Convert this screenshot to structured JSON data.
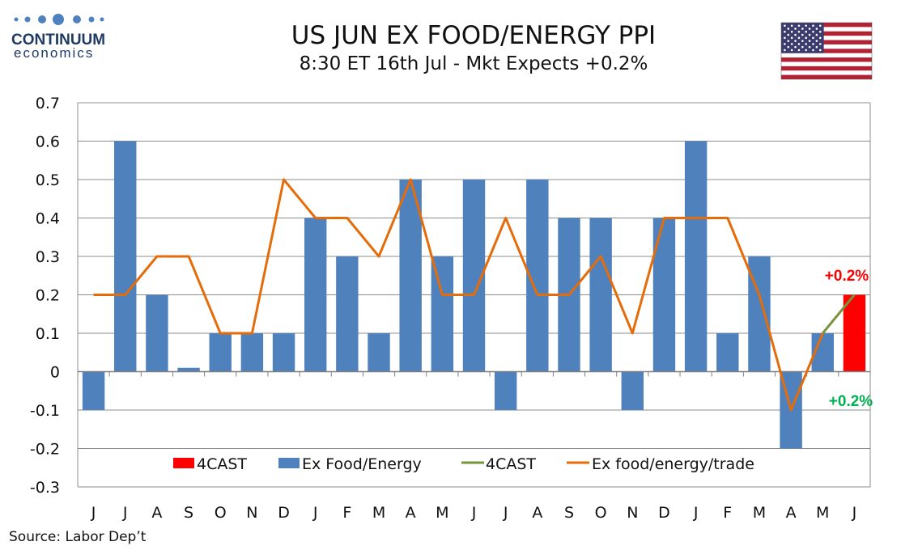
{
  "logo": {
    "name": "CONTINUUM",
    "sub": "economics"
  },
  "source": "Source: Labor Dep’t",
  "chart_data": {
    "type": "bar",
    "title": "US JUN EX FOOD/ENERGY PPI",
    "subtitle": "8:30 ET 16th Jul - Mkt Expects +0.2%",
    "categories": [
      "J",
      "J",
      "A",
      "S",
      "O",
      "N",
      "D",
      "J",
      "F",
      "M",
      "A",
      "M",
      "J",
      "J",
      "A",
      "S",
      "O",
      "N",
      "D",
      "J",
      "F",
      "M",
      "A",
      "M",
      "J"
    ],
    "ylim": [
      -0.3,
      0.7
    ],
    "yticks": [
      "0.7",
      "0.6",
      "0.5",
      "0.4",
      "0.3",
      "0.2",
      "0.1",
      "0",
      "-0.1",
      "-0.2",
      "-0.3"
    ],
    "grid": true,
    "legend_position": "bottom-inside",
    "series": [
      {
        "name": "4CAST",
        "type": "bar",
        "color": "#ff0000",
        "values": [
          null,
          null,
          null,
          null,
          null,
          null,
          null,
          null,
          null,
          null,
          null,
          null,
          null,
          null,
          null,
          null,
          null,
          null,
          null,
          null,
          null,
          null,
          null,
          null,
          0.2
        ]
      },
      {
        "name": "Ex Food/Energy",
        "type": "bar",
        "color": "#4f81bd",
        "values": [
          -0.1,
          0.6,
          0.2,
          0.01,
          0.1,
          0.1,
          0.1,
          0.4,
          0.3,
          0.1,
          0.5,
          0.3,
          0.5,
          -0.1,
          0.5,
          0.4,
          0.4,
          -0.1,
          0.4,
          0.6,
          0.1,
          0.3,
          -0.2,
          0.1,
          null
        ]
      },
      {
        "name": "4CAST",
        "type": "line",
        "color": "#77933c",
        "values": [
          null,
          null,
          null,
          null,
          null,
          null,
          null,
          null,
          null,
          null,
          null,
          null,
          null,
          null,
          null,
          null,
          null,
          null,
          null,
          null,
          null,
          null,
          null,
          0.1,
          0.2
        ]
      },
      {
        "name": "Ex food/energy/trade",
        "type": "line",
        "color": "#e46c0a",
        "values": [
          0.2,
          0.2,
          0.3,
          0.3,
          0.1,
          0.1,
          0.5,
          0.4,
          0.4,
          0.3,
          0.5,
          0.2,
          0.2,
          0.4,
          0.2,
          0.2,
          0.3,
          0.1,
          0.4,
          0.4,
          0.4,
          0.2,
          -0.1,
          0.1,
          null
        ]
      }
    ],
    "annotations": [
      {
        "text": "+0.2%",
        "color": "#ff0000"
      },
      {
        "text": "+0.2%",
        "color": "#00b050"
      }
    ]
  }
}
